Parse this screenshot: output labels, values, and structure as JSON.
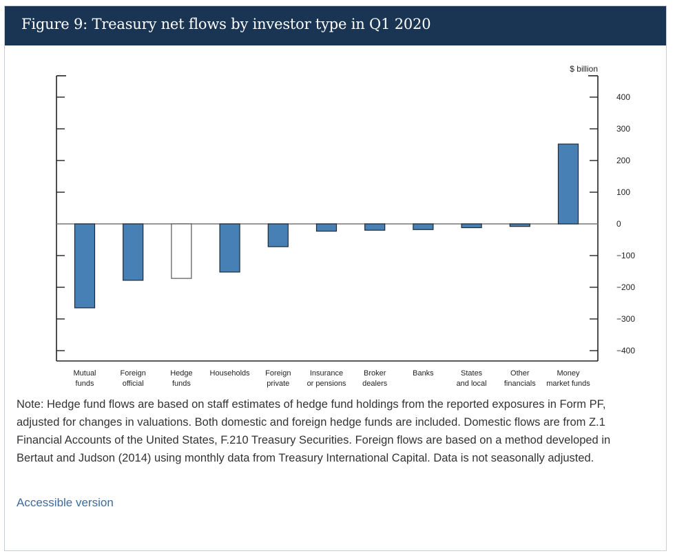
{
  "header": {
    "title": "Figure 9: Treasury net flows by investor type in Q1 2020"
  },
  "chart_data": {
    "type": "bar",
    "title": "Treasury net flows by investor type in Q1 2020",
    "xlabel": "",
    "ylabel": "$ billion",
    "ylim": [
      -430,
      470
    ],
    "yticks": [
      400,
      300,
      200,
      100,
      0,
      -100,
      -200,
      -300,
      -400
    ],
    "ytick_labels": [
      "400",
      "300",
      "200",
      "100",
      "0",
      "−100",
      "−200",
      "−300",
      "−400"
    ],
    "grid": false,
    "categories": [
      [
        "Mutual",
        "funds"
      ],
      [
        "Foreign",
        "official"
      ],
      [
        "Hedge",
        "funds"
      ],
      [
        "Households"
      ],
      [
        "Foreign",
        "private"
      ],
      [
        "Insurance",
        "or pensions"
      ],
      [
        "Broker",
        "dealers"
      ],
      [
        "Banks"
      ],
      [
        "States",
        "and local"
      ],
      [
        "Other",
        "financials"
      ],
      [
        "Money",
        "market funds"
      ]
    ],
    "values": [
      -265,
      -178,
      -172,
      -152,
      -72,
      -23,
      -20,
      -18,
      -12,
      -8,
      252
    ],
    "hollow": [
      false,
      false,
      true,
      false,
      false,
      false,
      false,
      false,
      false,
      false,
      false
    ],
    "colors": {
      "bar": "#4680b4",
      "bar_stroke": "#1f2a36",
      "hollow_stroke": "#555555",
      "axis": "#222222"
    }
  },
  "note": "Note: Hedge fund flows are based on staff estimates of hedge fund holdings from the reported exposures in Form PF, adjusted for changes in valuations. Both domestic and foreign hedge funds are included. Domestic flows are from Z.1 Financial Accounts of the United States, F.210 Treasury Securities. Foreign flows are based on a method developed in Bertaut and Judson (2014) using monthly data from Treasury International Capital. Data is not seasonally adjusted.",
  "links": {
    "accessible": "Accessible version"
  }
}
